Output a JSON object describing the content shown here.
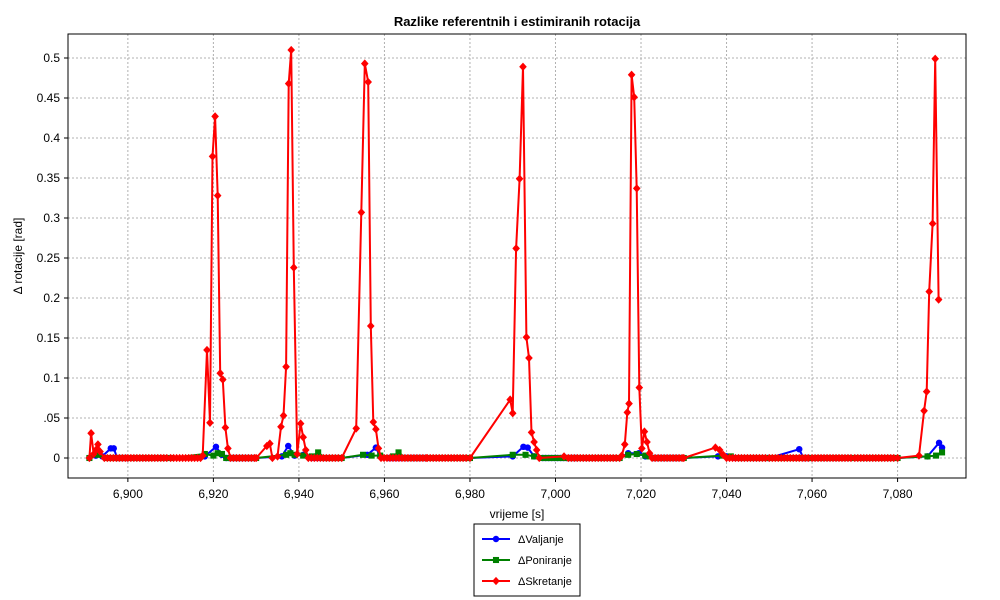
{
  "chart_data": {
    "type": "line",
    "title": "Razlike referentnih i estimiranih rotacija",
    "xlabel": "vrijeme [s]",
    "ylabel": "Δ rotacije [rad]",
    "xlim": [
      6886,
      7096
    ],
    "ylim": [
      -0.025,
      0.53
    ],
    "x_ticks": [
      6900,
      6920,
      6940,
      6960,
      6980,
      7000,
      7020,
      7040,
      7060,
      7080
    ],
    "x_tick_labels": [
      "6,900",
      "6,920",
      "6,940",
      "6,960",
      "6,980",
      "7,000",
      "7,020",
      "7,040",
      "7,060",
      "7,080"
    ],
    "y_ticks": [
      0,
      0.05,
      0.1,
      0.15,
      0.2,
      0.25,
      0.3,
      0.35,
      0.4,
      0.45,
      0.5
    ],
    "y_tick_labels": [
      "0",
      ".05",
      "0.1",
      "0.15",
      "0.2",
      "0.25",
      "0.3",
      "0.35",
      "0.4",
      "0.45",
      "0.5"
    ],
    "grid": true,
    "legend_position": "bottom-center",
    "series": [
      {
        "name": "ΔValjanje",
        "color": "#0000ff",
        "marker": "circle",
        "points": [
          [
            6891,
            0
          ],
          [
            6892.5,
            0.003
          ],
          [
            6894,
            0.002
          ],
          [
            6896,
            0.012
          ],
          [
            6896.7,
            0.012
          ],
          [
            6897.5,
            0
          ],
          [
            6900,
            0
          ],
          [
            6910,
            0
          ],
          [
            6918,
            0.002
          ],
          [
            6920.6,
            0.014
          ],
          [
            6922,
            0.004
          ],
          [
            6923,
            0
          ],
          [
            6930,
            0
          ],
          [
            6936,
            0.002
          ],
          [
            6937.5,
            0.015
          ],
          [
            6939,
            0.003
          ],
          [
            6941,
            0.004
          ],
          [
            6943,
            0
          ],
          [
            6950,
            0
          ],
          [
            6956,
            0.004
          ],
          [
            6958,
            0.013
          ],
          [
            6959,
            0.002
          ],
          [
            6961,
            0
          ],
          [
            6970,
            0
          ],
          [
            6980,
            0
          ],
          [
            6990,
            0.002
          ],
          [
            6992.5,
            0.014
          ],
          [
            6993.5,
            0.013
          ],
          [
            6995,
            0.002
          ],
          [
            6997,
            0
          ],
          [
            7005,
            0
          ],
          [
            7015,
            0
          ],
          [
            7017,
            0.006
          ],
          [
            7019.5,
            0.006
          ],
          [
            7021,
            0.002
          ],
          [
            7023,
            0
          ],
          [
            7030,
            0
          ],
          [
            7038,
            0.002
          ],
          [
            7040,
            0.002
          ],
          [
            7042,
            0
          ],
          [
            7050,
            0
          ],
          [
            7057,
            0.011
          ],
          [
            7058,
            0
          ],
          [
            7070,
            0
          ],
          [
            7080,
            0
          ],
          [
            7087,
            0.002
          ],
          [
            7089.7,
            0.019
          ],
          [
            7090.4,
            0.013
          ]
        ]
      },
      {
        "name": "ΔPoniranje",
        "color": "#008000",
        "marker": "square",
        "points": [
          [
            6891,
            0
          ],
          [
            6893,
            0.004
          ],
          [
            6895,
            0
          ],
          [
            6900,
            0
          ],
          [
            6910,
            0
          ],
          [
            6918,
            0.005
          ],
          [
            6920,
            0.003
          ],
          [
            6921,
            0.006
          ],
          [
            6922,
            0.005
          ],
          [
            6923,
            0
          ],
          [
            6930,
            0
          ],
          [
            6937,
            0.004
          ],
          [
            6938,
            0.006
          ],
          [
            6939,
            0.004
          ],
          [
            6941,
            0.003
          ],
          [
            6943,
            0.002
          ],
          [
            6944.5,
            0.007
          ],
          [
            6946,
            0
          ],
          [
            6950,
            0
          ],
          [
            6955,
            0.004
          ],
          [
            6957,
            0.003
          ],
          [
            6959,
            0.003
          ],
          [
            6962,
            0.002
          ],
          [
            6963.3,
            0.007
          ],
          [
            6965,
            0
          ],
          [
            6980,
            0
          ],
          [
            6990,
            0.004
          ],
          [
            6993,
            0.004
          ],
          [
            6995,
            0.002
          ],
          [
            6997,
            0
          ],
          [
            7005,
            0
          ],
          [
            7015,
            0
          ],
          [
            7017,
            0.004
          ],
          [
            7019,
            0.005
          ],
          [
            7021,
            0.003
          ],
          [
            7022,
            0.002
          ],
          [
            7023,
            0
          ],
          [
            7030,
            0
          ],
          [
            7039,
            0.003
          ],
          [
            7041,
            0.002
          ],
          [
            7043,
            0
          ],
          [
            7060,
            0
          ],
          [
            7080,
            0
          ],
          [
            7087,
            0.002
          ],
          [
            7089,
            0.003
          ],
          [
            7090.4,
            0.007
          ]
        ]
      },
      {
        "name": "ΔSkretanje",
        "color": "#ff0000",
        "marker": "diamond",
        "points": [
          [
            6891,
            0
          ],
          [
            6891.4,
            0.031
          ],
          [
            6892,
            0.005
          ],
          [
            6892.5,
            0.01
          ],
          [
            6893,
            0.017
          ],
          [
            6893.5,
            0.008
          ],
          [
            6894.5,
            0
          ],
          [
            6900,
            0
          ],
          [
            6910,
            0
          ],
          [
            6917,
            0
          ],
          [
            6917.5,
            0.003
          ],
          [
            6918.5,
            0.135
          ],
          [
            6919.2,
            0.044
          ],
          [
            6919.8,
            0.377
          ],
          [
            6920.4,
            0.427
          ],
          [
            6921,
            0.328
          ],
          [
            6921.6,
            0.106
          ],
          [
            6922.2,
            0.098
          ],
          [
            6922.8,
            0.038
          ],
          [
            6923.4,
            0.012
          ],
          [
            6924,
            0
          ],
          [
            6930,
            0
          ],
          [
            6932.5,
            0.015
          ],
          [
            6933.2,
            0.018
          ],
          [
            6933.8,
            0
          ],
          [
            6935,
            0.002
          ],
          [
            6935.8,
            0.039
          ],
          [
            6936.4,
            0.053
          ],
          [
            6937,
            0.114
          ],
          [
            6937.6,
            0.468
          ],
          [
            6938.2,
            0.51
          ],
          [
            6938.8,
            0.238
          ],
          [
            6939.6,
            0.005
          ],
          [
            6940.4,
            0.043
          ],
          [
            6941,
            0.026
          ],
          [
            6941.6,
            0.01
          ],
          [
            6942.2,
            0
          ],
          [
            6950,
            0
          ],
          [
            6953.4,
            0.037
          ],
          [
            6954.6,
            0.307
          ],
          [
            6955.4,
            0.493
          ],
          [
            6956.2,
            0.47
          ],
          [
            6956.8,
            0.165
          ],
          [
            6957.4,
            0.045
          ],
          [
            6958,
            0.036
          ],
          [
            6958.6,
            0.012
          ],
          [
            6959.2,
            0
          ],
          [
            6970,
            0
          ],
          [
            6980,
            0
          ],
          [
            6989.4,
            0.073
          ],
          [
            6990,
            0.056
          ],
          [
            6990.8,
            0.262
          ],
          [
            6991.6,
            0.349
          ],
          [
            6992.4,
            0.489
          ],
          [
            6993.2,
            0.151
          ],
          [
            6993.8,
            0.125
          ],
          [
            6994.4,
            0.032
          ],
          [
            6995,
            0.02
          ],
          [
            6995.6,
            0.01
          ],
          [
            6996.2,
            0
          ],
          [
            7002,
            0.002
          ],
          [
            7003,
            0
          ],
          [
            7010,
            0
          ],
          [
            7015,
            0
          ],
          [
            7015.5,
            0.003
          ],
          [
            7016.2,
            0.017
          ],
          [
            7016.8,
            0.057
          ],
          [
            7017.2,
            0.068
          ],
          [
            7017.8,
            0.479
          ],
          [
            7018.4,
            0.451
          ],
          [
            7019,
            0.337
          ],
          [
            7019.6,
            0.088
          ],
          [
            7020.2,
            0.012
          ],
          [
            7020.8,
            0.033
          ],
          [
            7021.4,
            0.02
          ],
          [
            7022,
            0.006
          ],
          [
            7022.6,
            0
          ],
          [
            7030,
            0
          ],
          [
            7037.4,
            0.013
          ],
          [
            7038.4,
            0.01
          ],
          [
            7039.2,
            0.004
          ],
          [
            7040,
            0
          ],
          [
            7050,
            0
          ],
          [
            7060,
            0
          ],
          [
            7070,
            0
          ],
          [
            7080,
            0
          ],
          [
            7085,
            0.003
          ],
          [
            7086.2,
            0.059
          ],
          [
            7086.8,
            0.083
          ],
          [
            7087.4,
            0.208
          ],
          [
            7088.2,
            0.293
          ],
          [
            7088.8,
            0.499
          ],
          [
            7089.6,
            0.198
          ]
        ]
      }
    ]
  }
}
